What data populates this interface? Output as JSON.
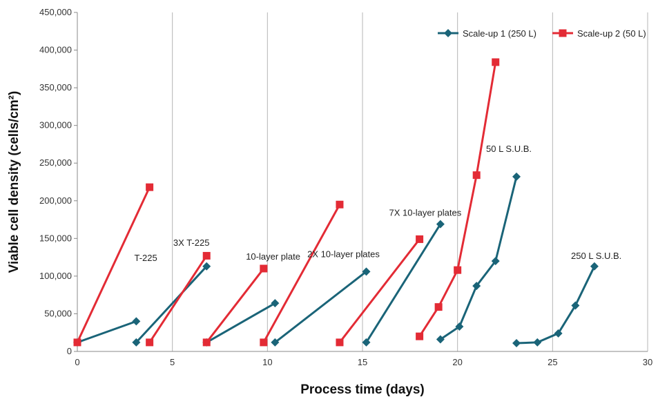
{
  "chart_data": {
    "type": "line",
    "xlabel": "Process time (days)",
    "ylabel": "Viable cell density (cells/cm²)",
    "xlim": [
      0,
      30
    ],
    "ylim": [
      0,
      450000
    ],
    "x_ticks": [
      "0",
      "5",
      "10",
      "15",
      "20",
      "25",
      "30"
    ],
    "y_ticks": [
      "0",
      "50,000",
      "100,000",
      "150,000",
      "200,000",
      "250,000",
      "300,000",
      "350,000",
      "400,000",
      "450,000"
    ],
    "grid": "vertical",
    "legend_position": "top-right",
    "series": [
      {
        "name": "Scale-up 1 (250 L)",
        "color": "#1a6478",
        "marker": "diamond",
        "segments": [
          [
            [
              0,
              12000
            ],
            [
              3.1,
              40000
            ]
          ],
          [
            [
              3.1,
              12000
            ],
            [
              6.8,
              113000
            ]
          ],
          [
            [
              6.8,
              12000
            ],
            [
              10.4,
              64000
            ]
          ],
          [
            [
              10.4,
              12000
            ],
            [
              15.2,
              106000
            ]
          ],
          [
            [
              15.2,
              12000
            ],
            [
              19.1,
              169000
            ]
          ],
          [
            [
              19.1,
              16000
            ],
            [
              20.1,
              33000
            ],
            [
              21.0,
              87000
            ],
            [
              22.0,
              120000
            ],
            [
              23.1,
              232000
            ]
          ],
          [
            [
              23.1,
              11000
            ],
            [
              24.2,
              12000
            ],
            [
              25.3,
              24000
            ],
            [
              26.2,
              61000
            ],
            [
              27.2,
              113000
            ]
          ]
        ]
      },
      {
        "name": "Scale-up 2 (50 L)",
        "color": "#e32b35",
        "marker": "square",
        "segments": [
          [
            [
              0,
              12000
            ],
            [
              3.8,
              218000
            ]
          ],
          [
            [
              3.8,
              12000
            ],
            [
              6.8,
              127000
            ]
          ],
          [
            [
              6.8,
              12000
            ],
            [
              9.8,
              110000
            ]
          ],
          [
            [
              9.8,
              12000
            ],
            [
              13.8,
              195000
            ]
          ],
          [
            [
              13.8,
              12000
            ],
            [
              18.0,
              149000
            ]
          ],
          [
            [
              18.0,
              20000
            ],
            [
              19.0,
              59000
            ],
            [
              20.0,
              108000
            ],
            [
              21.0,
              234000
            ],
            [
              22.0,
              384000
            ]
          ]
        ]
      }
    ],
    "annotations": [
      {
        "text": "T-225",
        "x": 3.6,
        "y": 120000
      },
      {
        "text": "3X T-225",
        "x": 6.0,
        "y": 140000
      },
      {
        "text": "10-layer plate",
        "x": 10.3,
        "y": 122000
      },
      {
        "text": "2X 10-layer plates",
        "x": 14.0,
        "y": 125000
      },
      {
        "text": "7X 10-layer plates",
        "x": 18.3,
        "y": 180000
      },
      {
        "text": "50 L S.U.B.",
        "x": 22.7,
        "y": 265000
      },
      {
        "text": "250 L S.U.B.",
        "x": 27.3,
        "y": 123000
      }
    ]
  }
}
